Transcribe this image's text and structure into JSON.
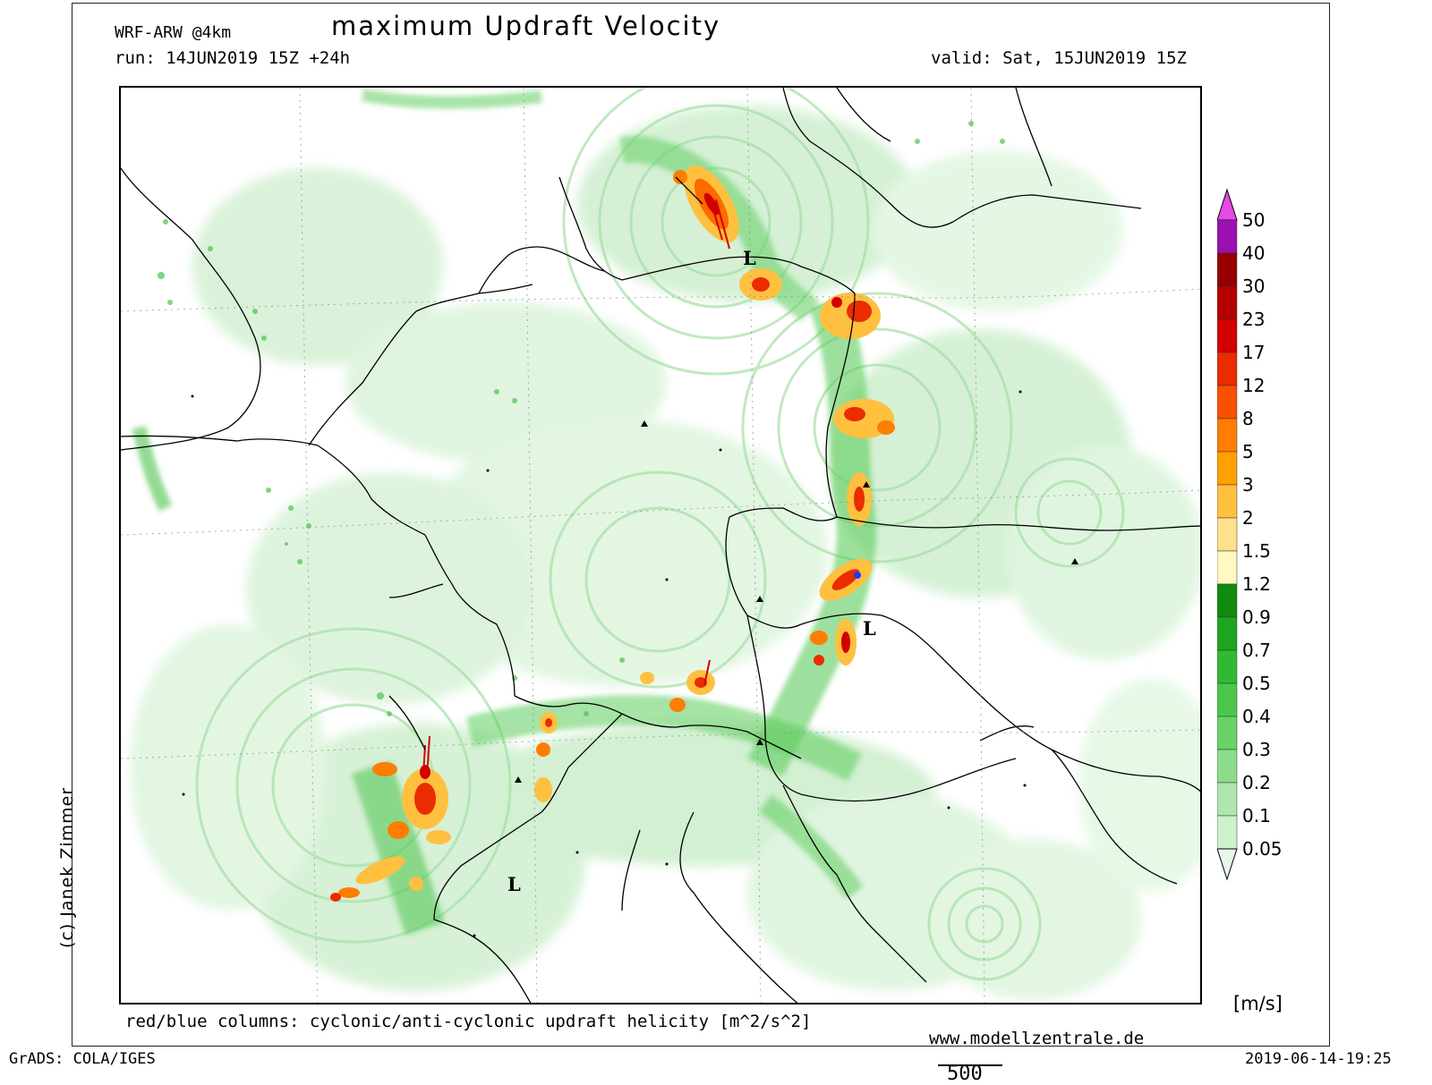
{
  "header": {
    "model": "WRF-ARW @4km",
    "title": "maximum Updraft Velocity",
    "run": "run: 14JUN2019 15Z +24h",
    "valid": "valid: Sat, 15JUN2019 15Z"
  },
  "map": {
    "pressure_lows": [
      "L",
      "L",
      "L"
    ],
    "colors": {
      "land_boundary": "#000000",
      "weak_updraft": "#bfe9bf",
      "moderate_updraft": "#4cc24c",
      "strong_core": "#e4261b",
      "helicity_cyclonic": "#d40000",
      "helicity_anticyclonic": "#1a3aff"
    }
  },
  "legend": {
    "units": "[m/s]",
    "levels": [
      "50",
      "40",
      "30",
      "23",
      "17",
      "12",
      "8",
      "5",
      "3",
      "2",
      "1.5",
      "1.2",
      "0.9",
      "0.7",
      "0.5",
      "0.4",
      "0.3",
      "0.2",
      "0.1",
      "0.05"
    ],
    "colors": [
      "#e64ae6",
      "#9a10b0",
      "#960000",
      "#b40000",
      "#d20000",
      "#ea2c00",
      "#fa5000",
      "#ff7d00",
      "#ffa000",
      "#ffc040",
      "#ffe08c",
      "#fff8c0",
      "#0f8c0f",
      "#1ea51e",
      "#32b932",
      "#4bc84b",
      "#69d269",
      "#8cdc8c",
      "#aee6ae",
      "#cdf0cd",
      "#e8f8e8"
    ]
  },
  "footer": {
    "helicity_note": "red/blue columns: cyclonic/anti-cyclonic updraft helicity [m^2/s^2]",
    "credit": "(c) Janek Zimmer",
    "website": "www.modellzentrale.de",
    "software": "GrADS: COLA/IGES",
    "timestamp": "2019-06-14-19:25",
    "scale_value": "500"
  }
}
